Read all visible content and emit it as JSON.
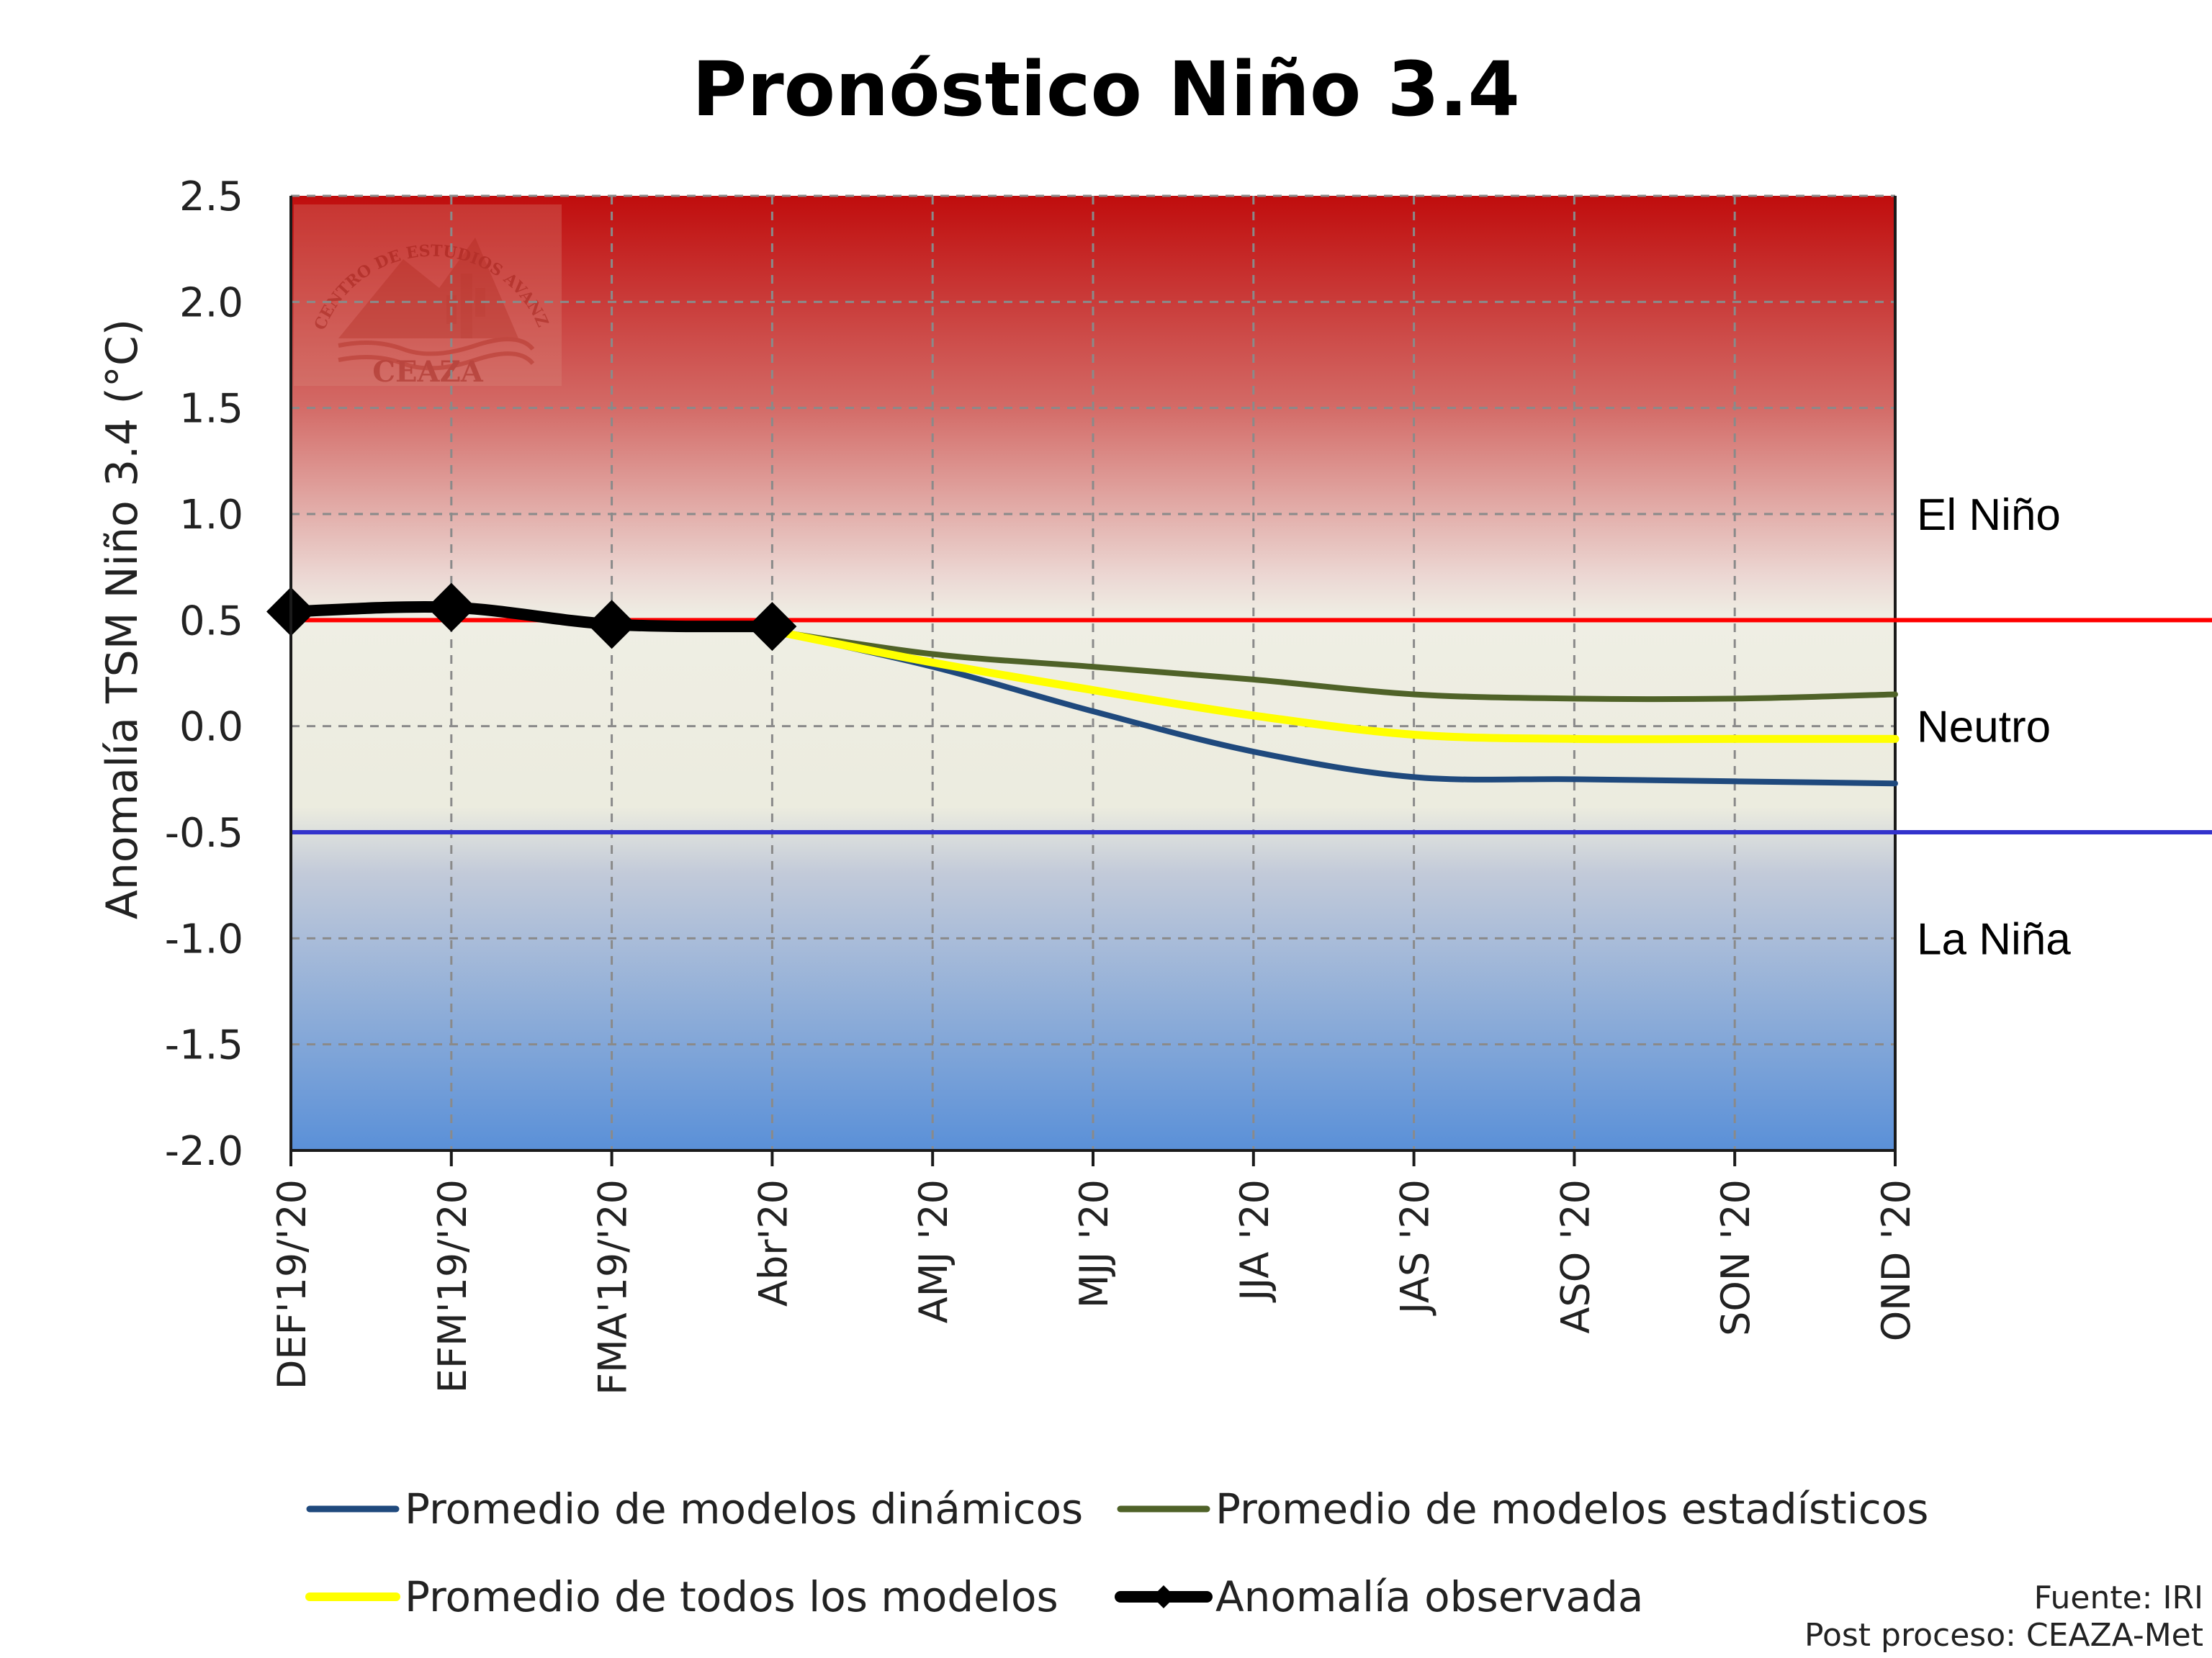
{
  "chart_data": {
    "type": "line",
    "title": "Pronóstico Niño 3.4",
    "xlabel": "",
    "ylabel": "Anomalía TSM Niño 3.4 (°C)",
    "ylim": [
      -2.0,
      2.5
    ],
    "yticks": [
      "2.5",
      "2.0",
      "1.5",
      "1.0",
      "0.5",
      "0.0",
      "-0.5",
      "-1.0",
      "-1.5",
      "-2.0"
    ],
    "yticks_values": [
      2.5,
      2.0,
      1.5,
      1.0,
      0.5,
      0.0,
      -0.5,
      -1.0,
      -1.5,
      -2.0
    ],
    "categories": [
      "DEF'19/'20",
      "EFM'19/'20",
      "FMA'19/'20",
      "Abr'20",
      "AMJ '20",
      "MJJ '20",
      "JJA '20",
      "JAS '20",
      "ASO '20",
      "SON '20",
      "OND '20"
    ],
    "grid": true,
    "legend_position": "bottom",
    "series": [
      {
        "name": "Promedio de modelos dinámicos",
        "color": "#1f497d",
        "values": [
          null,
          null,
          null,
          0.45,
          0.28,
          0.07,
          -0.12,
          -0.24,
          -0.25,
          -0.26,
          -0.27
        ]
      },
      {
        "name": "Promedio de modelos estadísticos",
        "color": "#4f6228",
        "values": [
          null,
          null,
          null,
          0.45,
          0.34,
          0.28,
          0.22,
          0.15,
          0.13,
          0.13,
          0.15
        ]
      },
      {
        "name": "Promedio de todos los modelos",
        "color": "#ffff00",
        "values": [
          null,
          null,
          null,
          0.45,
          0.3,
          0.17,
          0.05,
          -0.04,
          -0.06,
          -0.06,
          -0.06
        ]
      },
      {
        "name": "Anomalía observada",
        "color": "#000000",
        "values": [
          0.54,
          0.56,
          0.48,
          0.47,
          null,
          null,
          null,
          null,
          null,
          null,
          null
        ]
      }
    ],
    "thresholds": [
      {
        "value": 0.5,
        "color": "#ff0000"
      },
      {
        "value": -0.5,
        "color": "#3333cc"
      }
    ],
    "regions": [
      {
        "label": "El Niño",
        "value": 1.0
      },
      {
        "label": "Neutro",
        "value": 0.0
      },
      {
        "label": "La Niña",
        "value": -1.0
      }
    ],
    "source_lines": [
      "Fuente: IRI",
      "Post proceso: CEAZA-Met"
    ]
  },
  "watermark": {
    "text_arc": "CENTRO DE ESTUDIOS AVANZADOS EN ZONAS ÁRIDAS",
    "text_name": "CEAZA"
  }
}
